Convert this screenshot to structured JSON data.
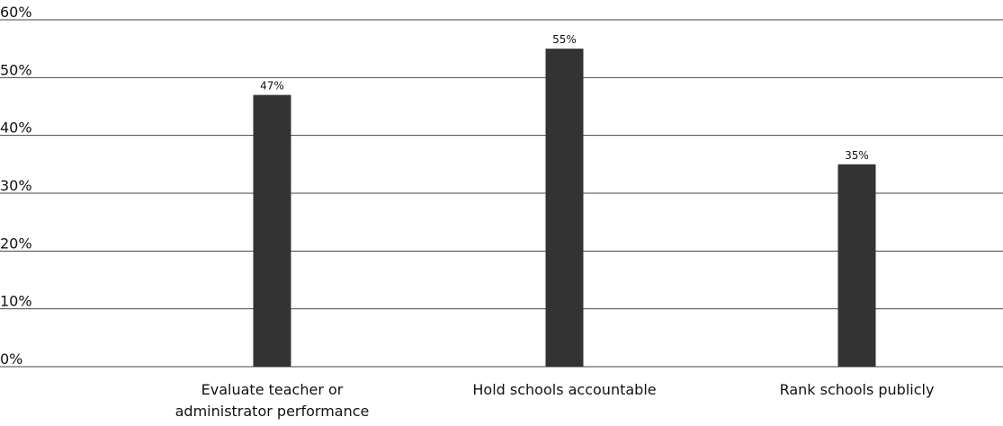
{
  "chart_data": {
    "type": "bar",
    "categories": [
      "Evaluate teacher or administrator performance",
      "Hold schools accountable",
      "Rank schools publicly"
    ],
    "values": [
      47,
      55,
      35
    ],
    "value_labels": [
      "47%",
      "55%",
      "35%"
    ],
    "color": "#333333",
    "ylim": [
      0,
      60
    ],
    "yticks": [
      {
        "value": 0,
        "label": "0%"
      },
      {
        "value": 10,
        "label": "10%"
      },
      {
        "value": 20,
        "label": "20%"
      },
      {
        "value": 30,
        "label": "30%"
      },
      {
        "value": 40,
        "label": "40%"
      },
      {
        "value": 50,
        "label": "50%"
      },
      {
        "value": 60,
        "label": "60%"
      }
    ],
    "grid": true
  }
}
